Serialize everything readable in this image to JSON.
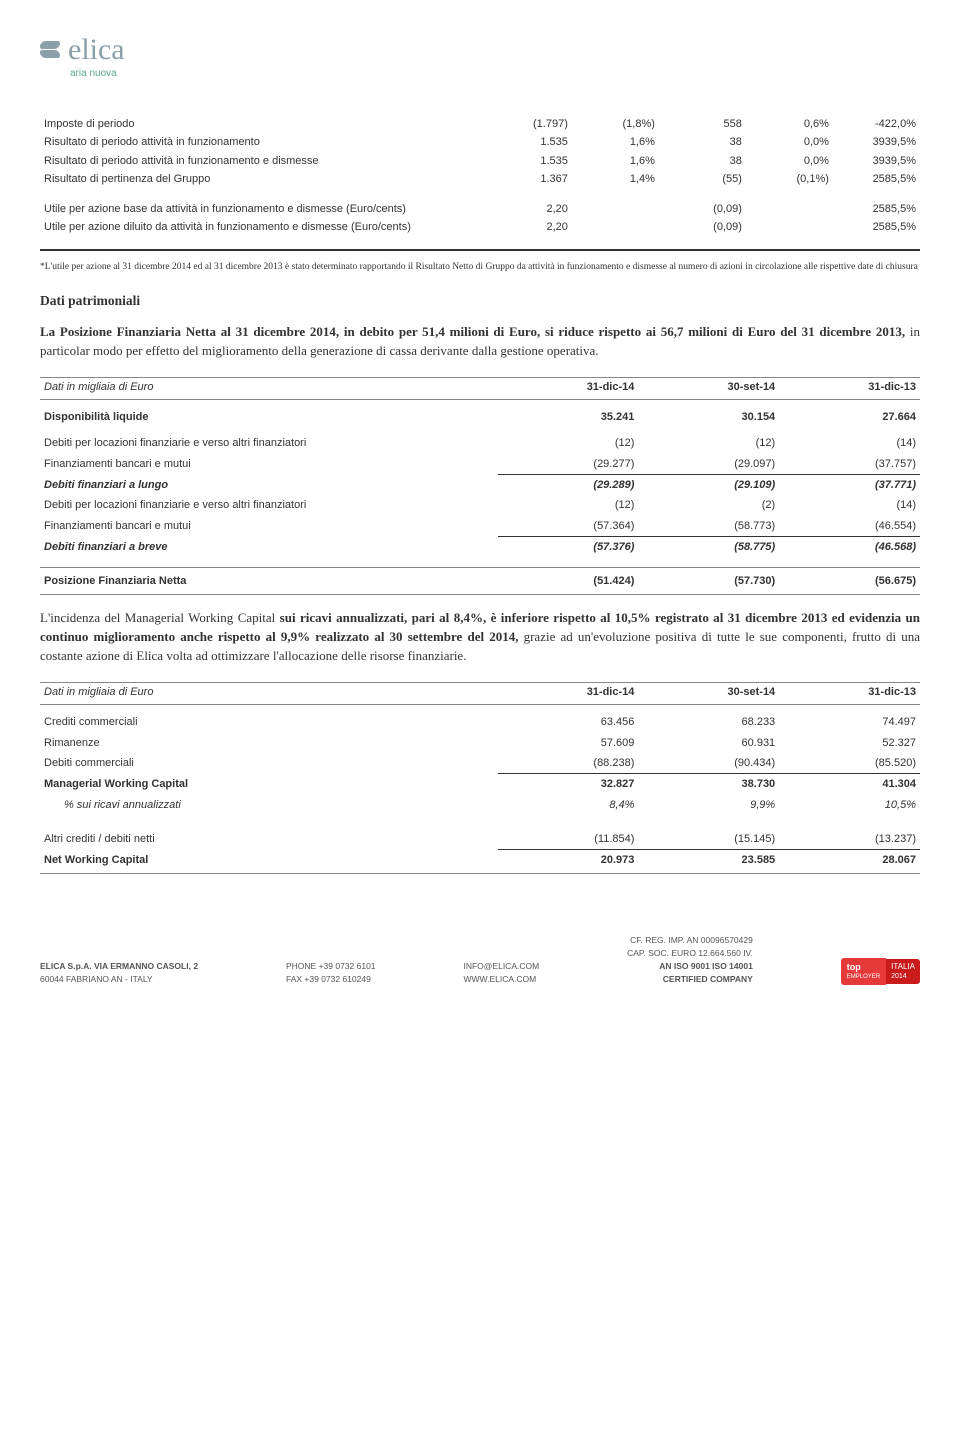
{
  "logo": {
    "name": "elica",
    "tagline": "aria nuova"
  },
  "t1": {
    "rows": [
      {
        "label": "Imposte di periodo",
        "v": [
          "(1.797)",
          "(1,8%)",
          "558",
          "0,6%",
          "-422,0%"
        ]
      },
      {
        "label": "Risultato di periodo attività in funzionamento",
        "v": [
          "1.535",
          "1,6%",
          "38",
          "0,0%",
          "3939,5%"
        ]
      },
      {
        "label": "Risultato di periodo attività in funzionamento e dismesse",
        "v": [
          "1.535",
          "1,6%",
          "38",
          "0,0%",
          "3939,5%"
        ]
      },
      {
        "label": "Risultato di pertinenza del Gruppo",
        "v": [
          "1.367",
          "1,4%",
          "(55)",
          "(0,1%)",
          "2585,5%"
        ]
      }
    ],
    "rows2": [
      {
        "label": "Utile per azione base da attività in funzionamento e dismesse (Euro/cents)",
        "v": [
          "2,20",
          "",
          "(0,09)",
          "",
          "2585,5%"
        ]
      },
      {
        "label": "Utile per azione diluito da attività in funzionamento e dismesse (Euro/cents)",
        "v": [
          "2,20",
          "",
          "(0,09)",
          "",
          "2585,5%"
        ]
      }
    ]
  },
  "footnote": "*L'utile per azione al 31 dicembre 2014 ed al 31 dicembre 2013 è stato determinato rapportando il Risultato Netto di Gruppo da attività in funzionamento e dismesse al numero di azioni in circolazione alle rispettive date di chiusura",
  "section1": "Dati patrimoniali",
  "para1a": "La Posizione Finanziaria Netta al 31 dicembre 2014, in debito per 51,4 milioni di Euro, si riduce rispetto ai 56,7 milioni di Euro del 31 dicembre 2013,",
  "para1b": " in particolar modo per effetto del miglioramento della generazione di cassa derivante dalla gestione operativa.",
  "t2": {
    "caption": "Dati in migliaia di Euro",
    "headers": [
      "31-dic-14",
      "30-set-14",
      "31-dic-13"
    ],
    "disp": {
      "label": "Disponibilità liquide",
      "v": [
        "35.241",
        "30.154",
        "27.664"
      ]
    },
    "rows_a": [
      {
        "label": "Debiti per locazioni finanziarie e verso altri finanziatori",
        "v": [
          "(12)",
          "(12)",
          "(14)"
        ]
      },
      {
        "label": "Finanziamenti bancari e mutui",
        "v": [
          "(29.277)",
          "(29.097)",
          "(37.757)"
        ]
      }
    ],
    "tot_a": {
      "label": "Debiti finanziari a lungo",
      "v": [
        "(29.289)",
        "(29.109)",
        "(37.771)"
      ]
    },
    "rows_b": [
      {
        "label": "Debiti per locazioni finanziarie e verso altri finanziatori",
        "v": [
          "(12)",
          "(2)",
          "(14)"
        ]
      },
      {
        "label": "Finanziamenti bancari e mutui",
        "v": [
          "(57.364)",
          "(58.773)",
          "(46.554)"
        ]
      }
    ],
    "tot_b": {
      "label": "Debiti finanziari a breve",
      "v": [
        "(57.376)",
        "(58.775)",
        "(46.568)"
      ]
    },
    "grand": {
      "label": "Posizione Finanziaria Netta",
      "v": [
        "(51.424)",
        "(57.730)",
        "(56.675)"
      ]
    }
  },
  "para2a": "L'incidenza del Managerial Working Capital",
  "para2b": " sui ricavi annualizzati, ",
  "para2c": "pari al 8,4%, è inferiore rispetto al 10,5% registrato al 31 dicembre 2013 ed evidenzia un continuo miglioramento anche rispetto al 9,9% realizzato  al 30 settembre del 2014,",
  "para2d": " grazie ad un'evoluzione positiva di tutte le sue componenti, frutto di una costante azione di Elica volta ad ottimizzare l'allocazione delle risorse finanziarie.",
  "t3": {
    "caption": "Dati in migliaia di Euro",
    "headers": [
      "31-dic-14",
      "30-set-14",
      "31-dic-13"
    ],
    "rows": [
      {
        "label": "Crediti commerciali",
        "v": [
          "63.456",
          "68.233",
          "74.497"
        ]
      },
      {
        "label": "Rimanenze",
        "v": [
          "57.609",
          "60.931",
          "52.327"
        ]
      },
      {
        "label": "Debiti commerciali",
        "v": [
          "(88.238)",
          "(90.434)",
          "(85.520)"
        ],
        "cls": "bbot"
      }
    ],
    "mwc": {
      "label": "Managerial Working Capital",
      "v": [
        "32.827",
        "38.730",
        "41.304"
      ]
    },
    "pct": {
      "label": "% sui ricavi annualizzati",
      "v": [
        "8,4%",
        "9,9%",
        "10,5%"
      ]
    },
    "other": {
      "label": "Altri crediti / debiti netti",
      "v": [
        "(11.854)",
        "(15.145)",
        "(13.237)"
      ]
    },
    "nwc": {
      "label": "Net Working Capital",
      "v": [
        "20.973",
        "23.585",
        "28.067"
      ]
    }
  },
  "footer": {
    "addr1": "ELICA S.p.A. VIA ERMANNO CASOLI, 2",
    "addr2": "60044 FABRIANO AN - ITALY",
    "ph1": "PHONE +39 0732 6101",
    "ph2": "FAX +39 0732 610249",
    "web1": "INFO@ELICA.COM",
    "web2": "WWW.ELICA.COM",
    "reg1": "CF. REG. IMP. AN 00096570429",
    "reg2": "CAP. SOC. EURO 12.664.560 IV.",
    "cert1": "AN ISO 9001 ISO 14001",
    "cert2": "CERTIFIED COMPANY",
    "badge1": "top",
    "badge1sub": "EMPLOYER",
    "badge2": "ITALIA",
    "badge2yr": "2014"
  }
}
